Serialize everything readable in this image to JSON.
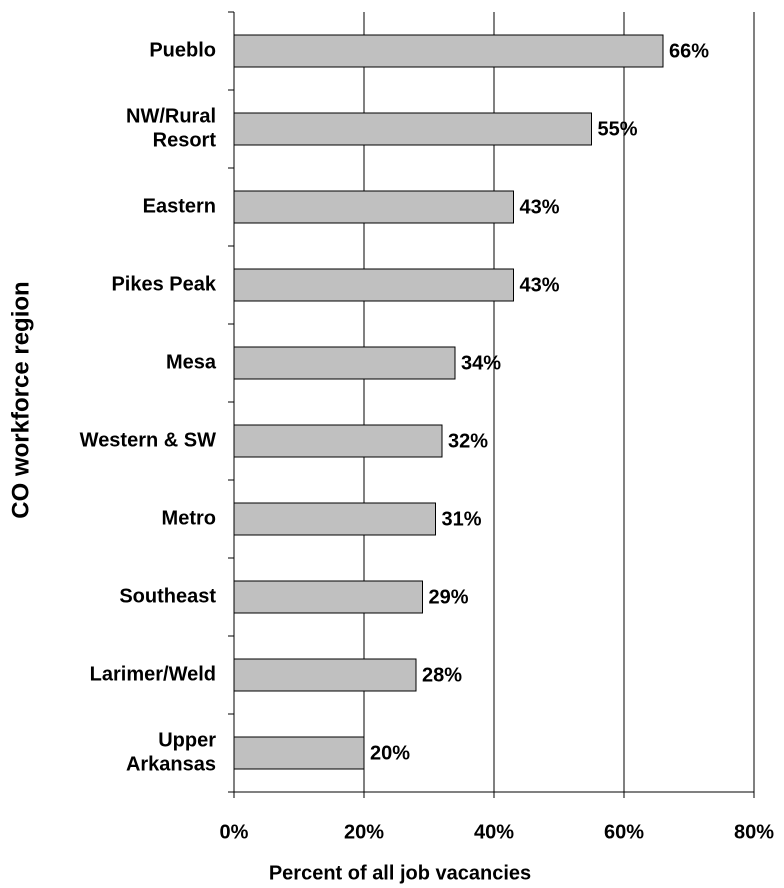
{
  "chart_data": {
    "type": "barh",
    "x_label": "Percent of all job vacancies",
    "y_label": "CO workforce region",
    "categories": [
      [
        "Pueblo"
      ],
      [
        "NW/Rural",
        "Resort"
      ],
      [
        "Eastern"
      ],
      [
        "Pikes Peak"
      ],
      [
        "Mesa"
      ],
      [
        "Western & SW"
      ],
      [
        "Metro"
      ],
      [
        "Southeast"
      ],
      [
        "Larimer/Weld"
      ],
      [
        "Upper",
        "Arkansas"
      ]
    ],
    "values": [
      66,
      55,
      43,
      43,
      34,
      32,
      31,
      29,
      28,
      20
    ],
    "value_labels": [
      "66%",
      "55%",
      "43%",
      "43%",
      "34%",
      "32%",
      "31%",
      "29%",
      "28%",
      "20%"
    ],
    "color": "#c0c0c0",
    "xlim": [
      0,
      80
    ],
    "xticks": [
      {
        "value": 0,
        "label": "0%"
      },
      {
        "value": 20,
        "label": "20%"
      },
      {
        "value": 40,
        "label": "40%"
      },
      {
        "value": 60,
        "label": "60%"
      },
      {
        "value": 80,
        "label": "80%"
      }
    ],
    "grid": true
  }
}
